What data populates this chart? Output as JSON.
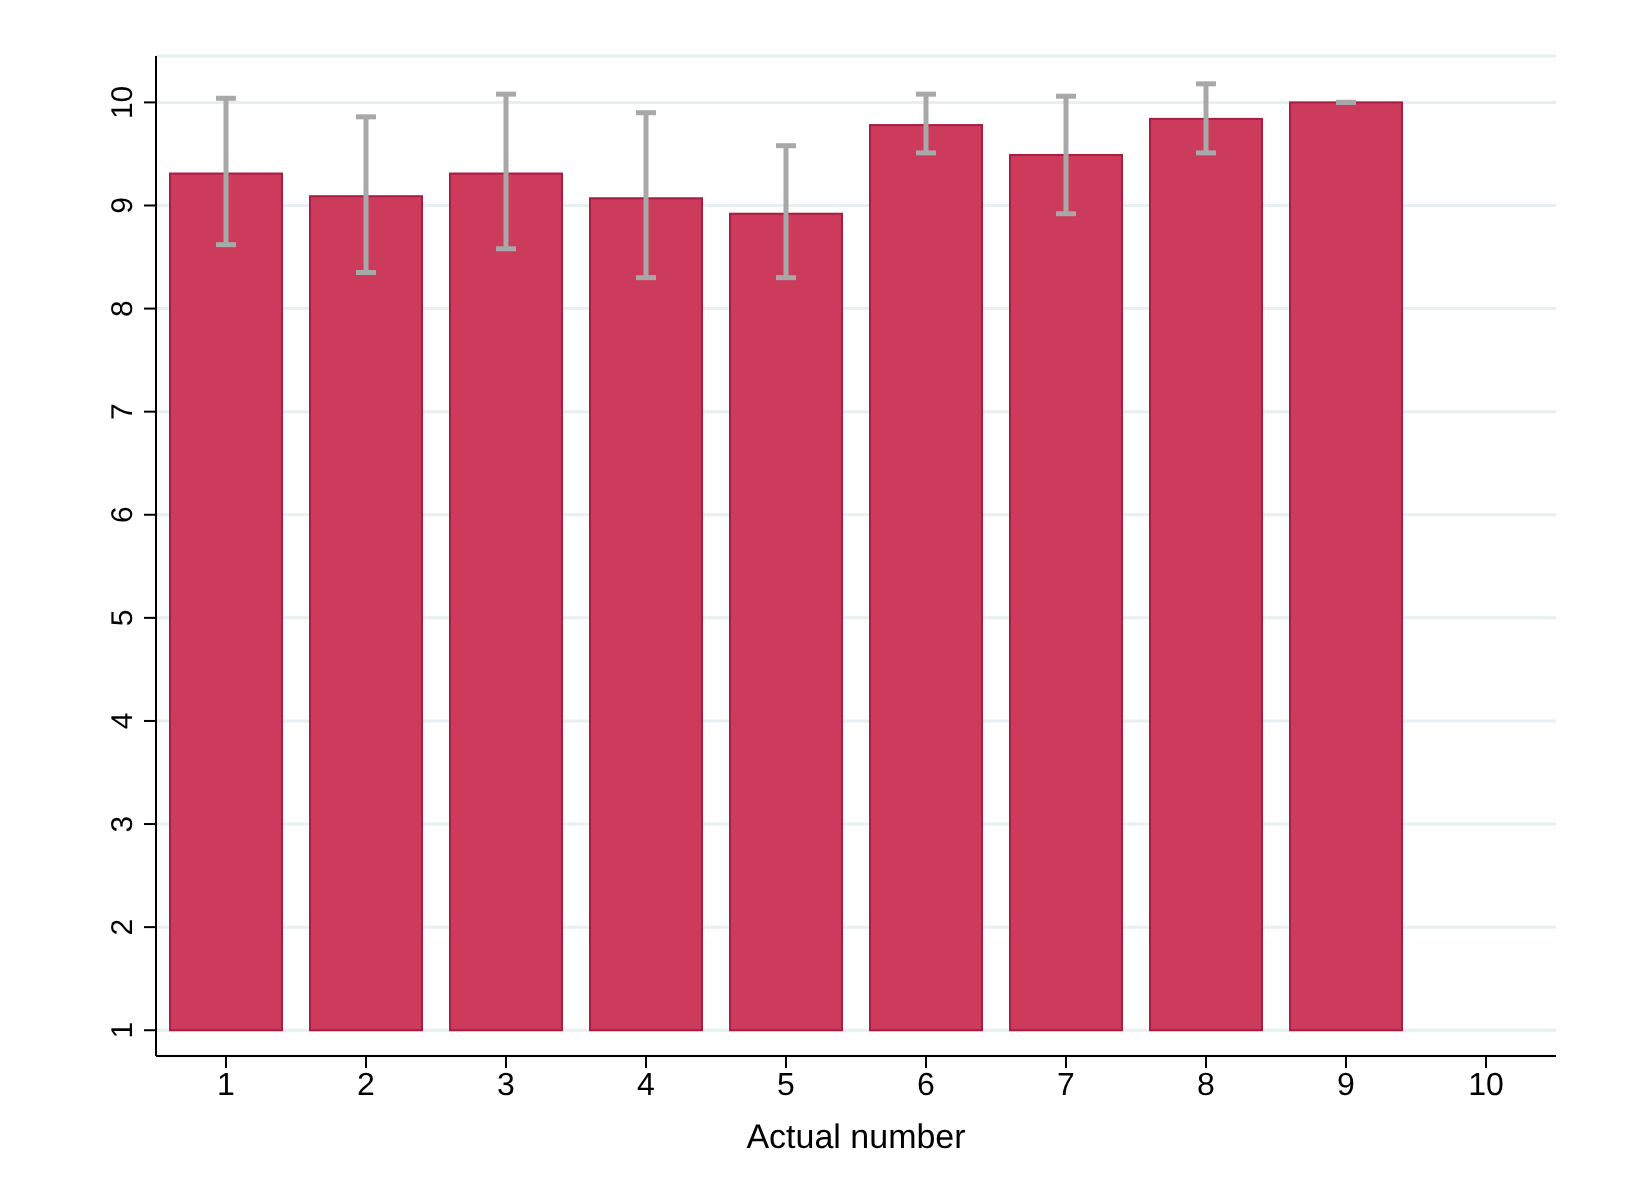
{
  "chart_data": {
    "type": "bar",
    "xlabel": "Actual number",
    "categories": [
      "1",
      "2",
      "3",
      "4",
      "5",
      "6",
      "7",
      "8",
      "9",
      "10"
    ],
    "base": [
      1,
      1,
      1,
      1,
      1,
      1,
      1,
      1,
      1,
      null
    ],
    "values": [
      8.31,
      8.09,
      8.31,
      8.07,
      7.92,
      8.78,
      8.49,
      8.84,
      9.0,
      null
    ],
    "errors": [
      [
        8.62,
        10.04
      ],
      [
        8.35,
        9.86
      ],
      [
        8.58,
        10.08
      ],
      [
        8.3,
        9.9
      ],
      [
        8.3,
        9.58
      ],
      [
        9.51,
        10.08
      ],
      [
        8.92,
        10.06
      ],
      [
        9.51,
        10.18
      ],
      [
        10.0,
        10.0
      ],
      null
    ],
    "color": "#cc3a5c",
    "ylim": [
      0.75,
      10.45
    ],
    "yticks": [
      1,
      2,
      3,
      4,
      5,
      6,
      7,
      8,
      9,
      10
    ],
    "grid": "y"
  }
}
